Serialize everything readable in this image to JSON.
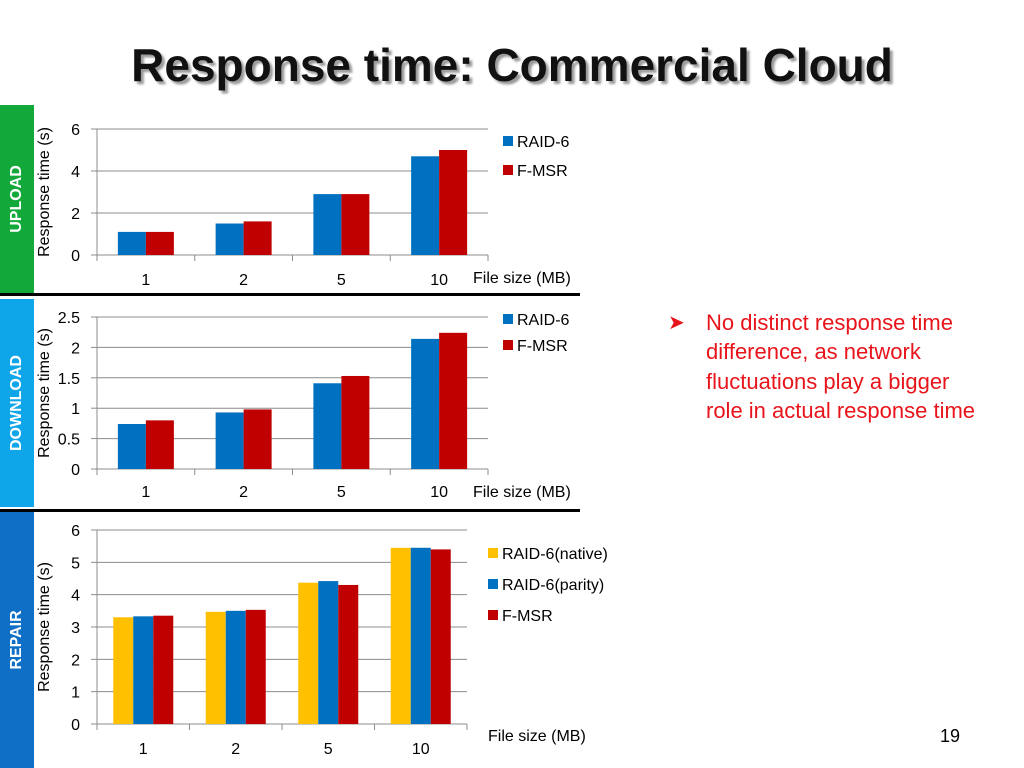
{
  "slide": {
    "title": "Response time: Commercial Cloud",
    "page_number": "19",
    "bullet": "No distinct response time difference, as network fluctuations play a bigger role in actual response time"
  },
  "side_tabs": {
    "upload": {
      "label": "UPLOAD",
      "color": "#12a93a"
    },
    "download": {
      "label": "DOWNLOAD",
      "color": "#0ea5e9"
    },
    "repair": {
      "label": "REPAIR",
      "color": "#0f6fc6"
    }
  },
  "colors": {
    "raid6": "#0070c0",
    "fmsr": "#c00000",
    "raid6_native": "#ffc000",
    "raid6_parity": "#0070c0",
    "bullet_text": "#e8141b"
  },
  "chart_data": [
    {
      "type": "bar",
      "categories": [
        "1",
        "2",
        "5",
        "10"
      ],
      "series": [
        {
          "name": "RAID-6",
          "values": [
            1.1,
            1.5,
            2.9,
            4.7
          ]
        },
        {
          "name": "F-MSR",
          "values": [
            1.1,
            1.6,
            2.9,
            5.0
          ]
        }
      ],
      "ylim": [
        0,
        6
      ],
      "yticks": [
        "0",
        "2",
        "4",
        "6"
      ],
      "xlabel": "File size (MB)",
      "ylabel": "Response time (s)",
      "grid": true,
      "legend": "right"
    },
    {
      "type": "bar",
      "categories": [
        "1",
        "2",
        "5",
        "10"
      ],
      "series": [
        {
          "name": "RAID-6",
          "values": [
            0.74,
            0.93,
            1.41,
            2.14
          ]
        },
        {
          "name": "F-MSR",
          "values": [
            0.8,
            0.98,
            1.53,
            2.24
          ]
        }
      ],
      "ylim": [
        0,
        2.5
      ],
      "yticks": [
        "0",
        "0.5",
        "1",
        "1.5",
        "2",
        "2.5"
      ],
      "xlabel": "File size (MB)",
      "ylabel": "Response time (s)",
      "grid": true,
      "legend": "right"
    },
    {
      "type": "bar",
      "categories": [
        "1",
        "2",
        "5",
        "10"
      ],
      "series": [
        {
          "name": "RAID-6(native)",
          "values": [
            3.3,
            3.47,
            4.37,
            5.45
          ]
        },
        {
          "name": "RAID-6(parity)",
          "values": [
            3.33,
            3.5,
            4.42,
            5.45
          ]
        },
        {
          "name": "F-MSR",
          "values": [
            3.35,
            3.53,
            4.3,
            5.4
          ]
        }
      ],
      "ylim": [
        0,
        6
      ],
      "yticks": [
        "0",
        "1",
        "2",
        "3",
        "4",
        "5",
        "6"
      ],
      "xlabel": "File size (MB)",
      "ylabel": "Response time (s)",
      "grid": true,
      "legend": "right"
    }
  ]
}
